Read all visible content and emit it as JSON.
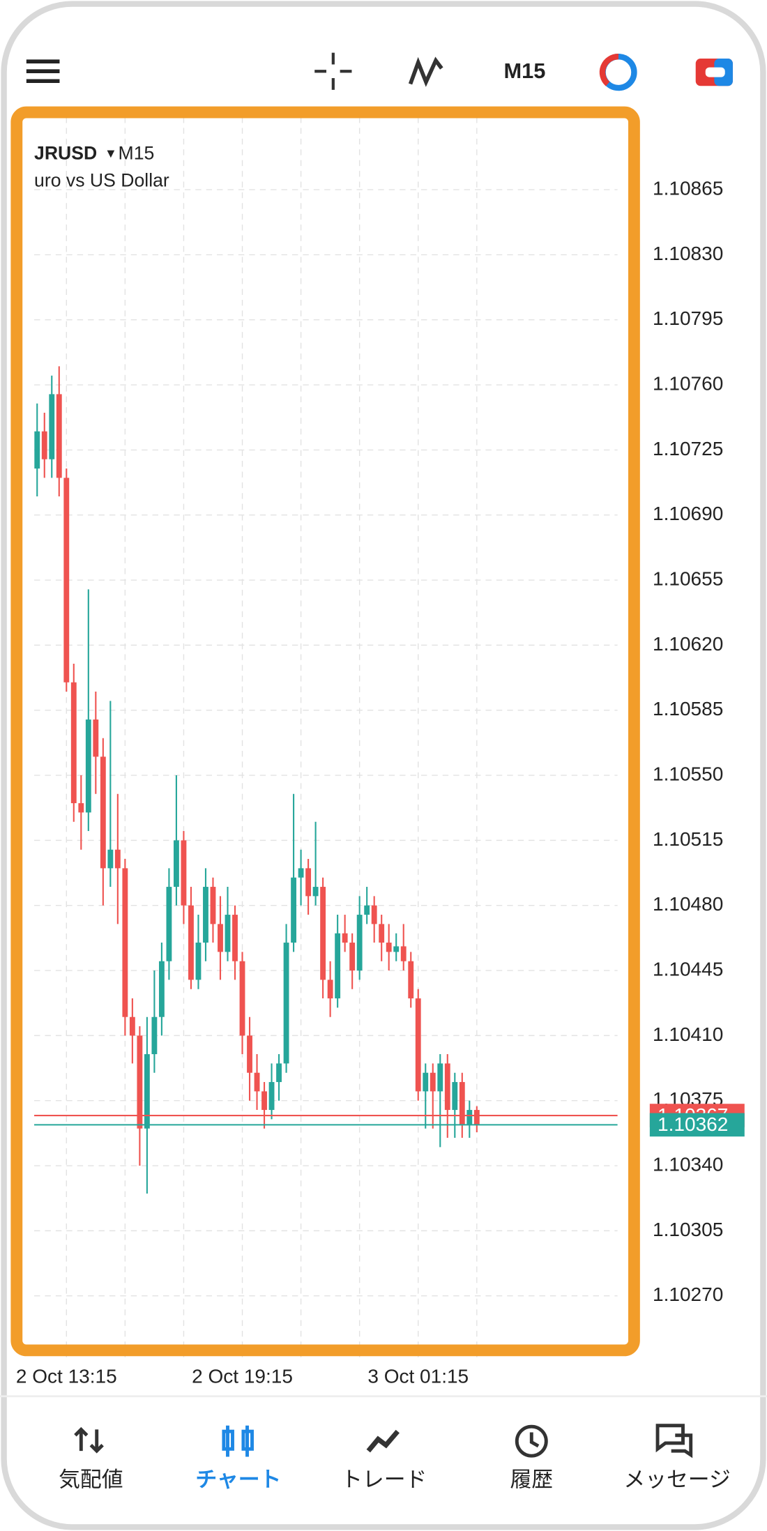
{
  "top_bar": {
    "timeframe": "M15"
  },
  "chart_data": {
    "type": "candlestick",
    "symbol": "JRUSD",
    "timeframe": "M15",
    "description": "uro vs US Dollar",
    "up_color": "#26a69a",
    "down_color": "#ef5350",
    "grid": true,
    "ylim": [
      1.10237,
      1.10904
    ],
    "yticks": [
      {
        "value": 1.10865,
        "label": "1.10865"
      },
      {
        "value": 1.1083,
        "label": "1.10830"
      },
      {
        "value": 1.10795,
        "label": "1.10795"
      },
      {
        "value": 1.1076,
        "label": "1.10760"
      },
      {
        "value": 1.10725,
        "label": "1.10725"
      },
      {
        "value": 1.1069,
        "label": "1.10690"
      },
      {
        "value": 1.10655,
        "label": "1.10655"
      },
      {
        "value": 1.1062,
        "label": "1.10620"
      },
      {
        "value": 1.10585,
        "label": "1.10585"
      },
      {
        "value": 1.1055,
        "label": "1.10550"
      },
      {
        "value": 1.10515,
        "label": "1.10515"
      },
      {
        "value": 1.1048,
        "label": "1.10480"
      },
      {
        "value": 1.10445,
        "label": "1.10445"
      },
      {
        "value": 1.1041,
        "label": "1.10410"
      },
      {
        "value": 1.10375,
        "label": "1.10375"
      },
      {
        "value": 1.1034,
        "label": "1.10340"
      },
      {
        "value": 1.10305,
        "label": "1.10305"
      },
      {
        "value": 1.1027,
        "label": "1.10270"
      }
    ],
    "price_lines": [
      {
        "value": 1.10367,
        "label": "1.10367",
        "color": "#ef5350"
      },
      {
        "value": 1.10362,
        "label": "1.10362",
        "color": "#26a69a"
      }
    ],
    "categories": [
      null,
      null,
      null,
      null,
      "2 Oct 13:15",
      null,
      null,
      null,
      null,
      null,
      null,
      null,
      null,
      null,
      null,
      null,
      null,
      null,
      null,
      null,
      null,
      null,
      null,
      null,
      null,
      null,
      null,
      null,
      "2 Oct 19:15",
      null,
      null,
      null,
      null,
      null,
      null,
      null,
      null,
      null,
      null,
      null,
      null,
      null,
      null,
      null,
      null,
      null,
      null,
      null,
      null,
      null,
      null,
      null,
      "3 Oct 01:15",
      null,
      null,
      null,
      null,
      null,
      null,
      null,
      null
    ],
    "ohlc": [
      [
        1.10715,
        1.1075,
        1.107,
        1.10735
      ],
      [
        1.10735,
        1.10745,
        1.1071,
        1.1072
      ],
      [
        1.1072,
        1.10765,
        1.1071,
        1.10755
      ],
      [
        1.10755,
        1.1077,
        1.107,
        1.1071
      ],
      [
        1.1071,
        1.10715,
        1.10595,
        1.106
      ],
      [
        1.106,
        1.1061,
        1.10525,
        1.10535
      ],
      [
        1.10535,
        1.1055,
        1.1051,
        1.1053
      ],
      [
        1.1053,
        1.1065,
        1.1052,
        1.1058
      ],
      [
        1.1058,
        1.10595,
        1.1054,
        1.1056
      ],
      [
        1.1056,
        1.1057,
        1.1048,
        1.105
      ],
      [
        1.105,
        1.1059,
        1.1049,
        1.1051
      ],
      [
        1.1051,
        1.1054,
        1.1047,
        1.105
      ],
      [
        1.105,
        1.10505,
        1.1041,
        1.1042
      ],
      [
        1.1042,
        1.1043,
        1.10395,
        1.1041
      ],
      [
        1.1041,
        1.10415,
        1.1034,
        1.1036
      ],
      [
        1.1036,
        1.1042,
        1.10325,
        1.104
      ],
      [
        1.104,
        1.10445,
        1.1039,
        1.1042
      ],
      [
        1.1042,
        1.1046,
        1.1041,
        1.1045
      ],
      [
        1.1045,
        1.105,
        1.1044,
        1.1049
      ],
      [
        1.1049,
        1.1055,
        1.1048,
        1.10515
      ],
      [
        1.10515,
        1.1052,
        1.1047,
        1.1048
      ],
      [
        1.1048,
        1.1049,
        1.10435,
        1.1044
      ],
      [
        1.1044,
        1.10475,
        1.10435,
        1.1046
      ],
      [
        1.1046,
        1.105,
        1.1045,
        1.1049
      ],
      [
        1.1049,
        1.10495,
        1.1046,
        1.1047
      ],
      [
        1.1047,
        1.10485,
        1.1044,
        1.10455
      ],
      [
        1.10455,
        1.1049,
        1.1045,
        1.10475
      ],
      [
        1.10475,
        1.1048,
        1.1044,
        1.1045
      ],
      [
        1.1045,
        1.10455,
        1.104,
        1.1041
      ],
      [
        1.1041,
        1.1042,
        1.10375,
        1.1039
      ],
      [
        1.1039,
        1.104,
        1.1037,
        1.1038
      ],
      [
        1.1038,
        1.10385,
        1.1036,
        1.1037
      ],
      [
        1.1037,
        1.10395,
        1.10365,
        1.10385
      ],
      [
        1.10385,
        1.104,
        1.10375,
        1.10395
      ],
      [
        1.10395,
        1.1047,
        1.1039,
        1.1046
      ],
      [
        1.1046,
        1.1054,
        1.10455,
        1.10495
      ],
      [
        1.10495,
        1.1051,
        1.1048,
        1.105
      ],
      [
        1.105,
        1.10505,
        1.10475,
        1.10485
      ],
      [
        1.10485,
        1.10525,
        1.1048,
        1.1049
      ],
      [
        1.1049,
        1.10495,
        1.1043,
        1.1044
      ],
      [
        1.1044,
        1.1045,
        1.1042,
        1.1043
      ],
      [
        1.1043,
        1.10475,
        1.10425,
        1.10465
      ],
      [
        1.10465,
        1.10475,
        1.10455,
        1.1046
      ],
      [
        1.1046,
        1.10465,
        1.10435,
        1.10445
      ],
      [
        1.10445,
        1.10485,
        1.1044,
        1.10475
      ],
      [
        1.10475,
        1.1049,
        1.1047,
        1.1048
      ],
      [
        1.1048,
        1.10485,
        1.1046,
        1.1047
      ],
      [
        1.1047,
        1.10475,
        1.1045,
        1.1046
      ],
      [
        1.1046,
        1.1047,
        1.10445,
        1.10455
      ],
      [
        1.10455,
        1.10465,
        1.1045,
        1.10458
      ],
      [
        1.10458,
        1.1047,
        1.10445,
        1.1045
      ],
      [
        1.1045,
        1.10455,
        1.10425,
        1.1043
      ],
      [
        1.1043,
        1.10435,
        1.10375,
        1.1038
      ],
      [
        1.1038,
        1.10395,
        1.1036,
        1.1039
      ],
      [
        1.1039,
        1.10395,
        1.1036,
        1.1038
      ],
      [
        1.1038,
        1.104,
        1.1035,
        1.10395
      ],
      [
        1.10395,
        1.104,
        1.10355,
        1.1037
      ],
      [
        1.1037,
        1.1039,
        1.10355,
        1.10385
      ],
      [
        1.10385,
        1.1039,
        1.10355,
        1.10362
      ],
      [
        1.10362,
        1.10375,
        1.10355,
        1.1037
      ],
      [
        1.1037,
        1.10372,
        1.10358,
        1.10362
      ]
    ]
  },
  "bottom_nav": {
    "items": [
      "気配値",
      "チャート",
      "トレード",
      "履歴",
      "メッセージ"
    ]
  }
}
